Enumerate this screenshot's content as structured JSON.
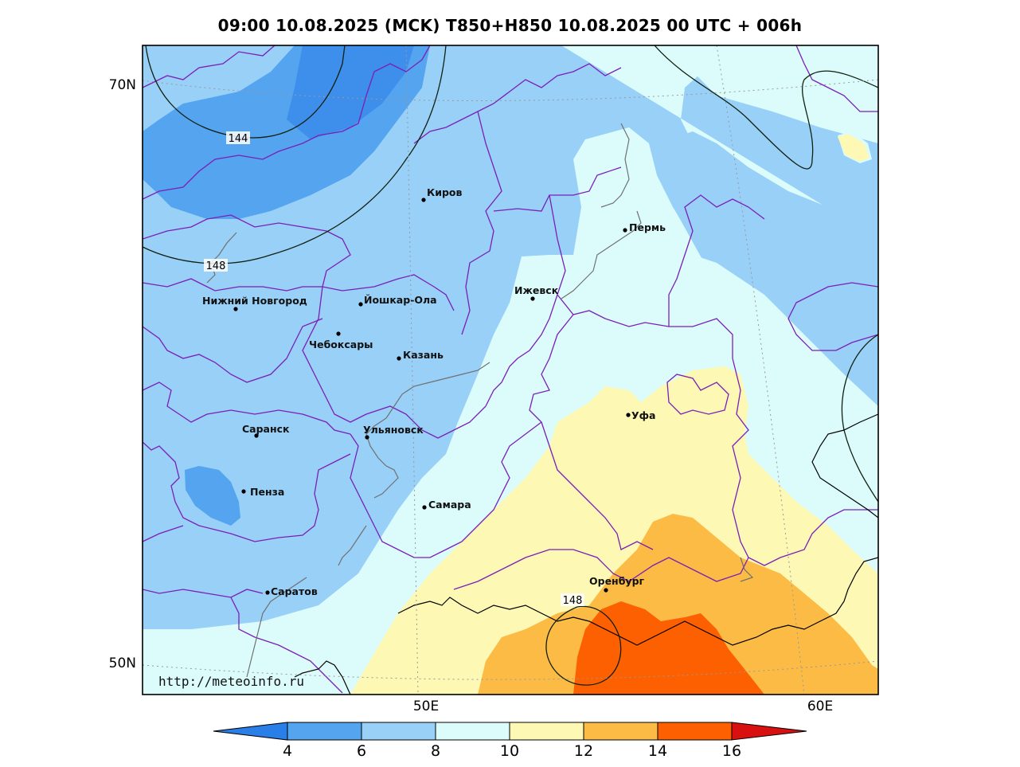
{
  "title": "09:00 10.08.2025 (MCK) T850+H850 10.08.2025 00 UTC + 006h",
  "source": "http://meteoinfo.ru",
  "axes": {
    "lat_labels": [
      "70N",
      "50N"
    ],
    "lon_labels": [
      "50E",
      "60E"
    ]
  },
  "contours": {
    "labels": [
      "144",
      "148",
      "148"
    ]
  },
  "cities": [
    {
      "name": "Киров"
    },
    {
      "name": "Пермь"
    },
    {
      "name": "Нижний Новгород"
    },
    {
      "name": "Йошкар-Ола"
    },
    {
      "name": "Ижевск"
    },
    {
      "name": "Чебоксары"
    },
    {
      "name": "Казань"
    },
    {
      "name": "Уфа"
    },
    {
      "name": "Саранск"
    },
    {
      "name": "Ульяновск"
    },
    {
      "name": "Пенза"
    },
    {
      "name": "Самара"
    },
    {
      "name": "Оренбург"
    },
    {
      "name": "Саратов"
    }
  ],
  "colorbar": {
    "ticks": [
      "4",
      "6",
      "8",
      "10",
      "12",
      "14",
      "16"
    ],
    "colors": [
      "#2a7ee8",
      "#54a4f0",
      "#99d0f8",
      "#dcfcfc",
      "#fdf8b4",
      "#fbbb45",
      "#fc6000",
      "#d81010"
    ]
  },
  "palette": {
    "lt4": "#2a7ee8",
    "t4_6": "#54a4f0",
    "t6_8": "#99d0f8",
    "t8_10": "#dcfcfc",
    "t10_12": "#fdf8b4",
    "t12_14": "#fbbb45",
    "t14_16": "#fc6000",
    "border": "#7a1fb8",
    "river": "#707070",
    "contour": "#102010"
  }
}
